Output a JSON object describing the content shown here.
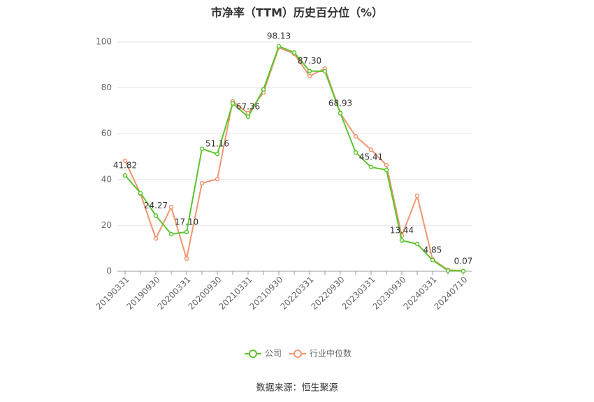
{
  "chart_data": {
    "type": "line",
    "title": "市净率（TTM）历史百分位（%）",
    "source": "数据来源：恒生聚源",
    "categories": [
      "20190331",
      null,
      "20190930",
      null,
      "20200331",
      null,
      "20200930",
      null,
      "20210331",
      null,
      "20210930",
      null,
      "20220331",
      null,
      "20220930",
      null,
      "20230331",
      null,
      "20230930",
      null,
      "20240331",
      null,
      "20240710"
    ],
    "series": [
      {
        "name": "公司",
        "color": "#5cc52e",
        "values": [
          41.82,
          34.1,
          24.27,
          16.2,
          17.1,
          53.4,
          51.16,
          73.2,
          67.36,
          79.3,
          98.13,
          95.4,
          87.3,
          87.2,
          68.93,
          51.8,
          45.41,
          44.2,
          13.44,
          11.9,
          4.85,
          0.3,
          0.07
        ],
        "value_labels": [
          "41.82",
          null,
          "24.27",
          null,
          "17.10",
          null,
          "51.16",
          null,
          "67.36",
          null,
          "98.13",
          null,
          "87.30",
          null,
          "68.93",
          null,
          "45.41",
          null,
          "13.44",
          null,
          "4.85",
          null,
          "0.07"
        ]
      },
      {
        "name": "行业中位数",
        "color": "#f09670",
        "values": [
          48.2,
          33.8,
          14.3,
          28.0,
          5.5,
          38.4,
          40.2,
          74.1,
          68.9,
          78.0,
          97.6,
          94.8,
          85.1,
          88.4,
          68.9,
          58.8,
          53.0,
          46.3,
          15.5,
          32.9,
          5.2,
          0.6,
          0.1
        ]
      }
    ],
    "ylim": [
      0,
      100
    ],
    "yticks": [
      0,
      20,
      40,
      60,
      80,
      100
    ],
    "grid": true
  }
}
